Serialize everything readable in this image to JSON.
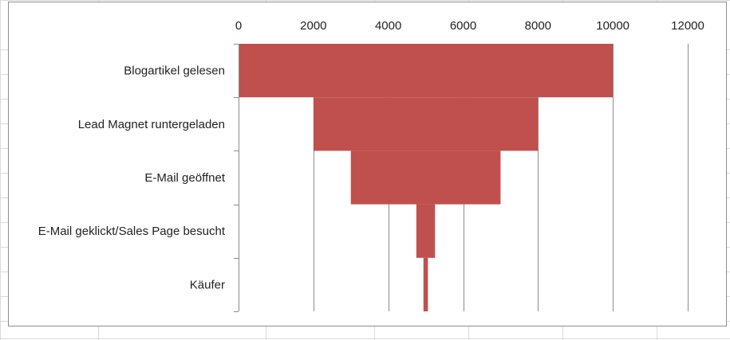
{
  "chart_data": {
    "type": "bar",
    "subtype": "funnel",
    "orientation": "horizontal",
    "categories": [
      "Blogartikel gelesen",
      "Lead Magnet runtergeladen",
      "E-Mail geöffnet",
      "E-Mail geklickt/Sales Page besucht",
      "Käufer"
    ],
    "values": [
      10000,
      6000,
      4000,
      500,
      120
    ],
    "center": 5000,
    "xlim": [
      0,
      12000
    ],
    "xticks": [
      0,
      2000,
      4000,
      6000,
      8000,
      10000,
      12000
    ],
    "x_axis_position": "top",
    "grid": true,
    "legend": "none",
    "bar_color": "#c0504d",
    "title": "",
    "xlabel": "",
    "ylabel": ""
  }
}
